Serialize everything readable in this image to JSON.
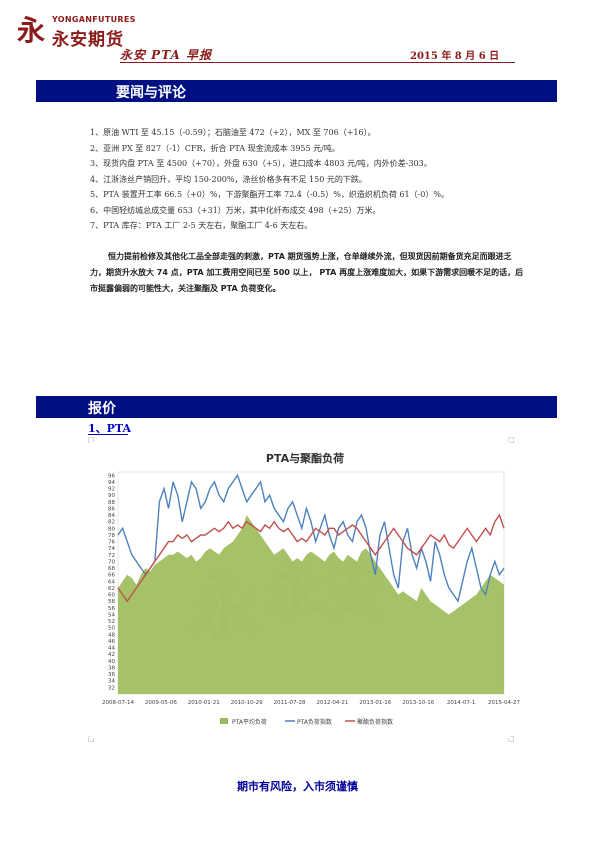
{
  "header": {
    "logo_en": "YONGANFUTURES",
    "logo_cn": "永安期货",
    "title": "永安 PTA 早报",
    "date": "2015 年 8 月 6 日"
  },
  "sections": {
    "news_title": "要闻与评论",
    "quote_title": "报价",
    "pta_subtitle": "1、PTA"
  },
  "news": [
    "1、原油 WTI 至 45.15（-0.59）；石脑油至 472（+2），MX 至 706（+16）。",
    "2、亚洲 PX 至 827（-1）CFR，折合 PTA 现金流成本 3955 元/吨。",
    "3、现货内盘 PTA 至 4500（+70），外盘 630（+5），进口成本 4803 元/吨，内外价差-303。",
    "4、江浙涤丝产销回升，平均 150-200%，涤丝价格多有不足 150 元的下跌。",
    "5、PTA 装置开工率 66.5（+0）%，下游聚酯开工率 72.4（-0.5）%，织造织机负荷 61（-0）%。",
    "6、中国轻纺城总成交量 653（+31）万米，其中化纤布成交 498（+25）万米。",
    "7、PTA 库存：PTA 工厂 2-5 天左右，聚酯工厂 4-6 天左右。"
  ],
  "commentary": "恒力提前检修及其他化工品全部走强的刺激，PTA 期货强势上涨，仓单继续外流，但现货因前期备货充足而跟进乏力，期货升水放大 74 点，PTA 加工费用空间已至 500 以上， PTA 再度上涨难度加大，如果下游需求回暖不足的话，后市挺露偏弱的可能性大，关注聚酯及 PTA 负荷变化。",
  "footer": "期市有风险，入市须谨慎",
  "colors": {
    "brand": "#8b1a1a",
    "bar": "#000f82",
    "link": "#0000cc",
    "footer": "#000099",
    "green": "#9bbb59",
    "blue": "#4f81bd",
    "red": "#c0504d"
  },
  "chart_data": {
    "type": "line",
    "title": "PTA与聚酯负荷",
    "ylim": [
      30,
      97
    ],
    "yticks": [
      32,
      34,
      36,
      38,
      40,
      42,
      44,
      46,
      48,
      50,
      52,
      54,
      56,
      58,
      60,
      62,
      64,
      66,
      68,
      70,
      72,
      74,
      76,
      78,
      80,
      82,
      84,
      86,
      88,
      90,
      92,
      94,
      96
    ],
    "x_ticks": [
      "2008-07-14",
      "2009-05-06",
      "2010-01-21",
      "2010-10-29",
      "2011-07-28",
      "2012-04-21",
      "2013-01-16",
      "2013-10-16",
      "2014-07-1",
      "2015-04-27"
    ],
    "series": [
      {
        "name": "PTA平均负荷",
        "style": "area",
        "color": "#9bbb59",
        "values": [
          62,
          64,
          66,
          65,
          63,
          66,
          68,
          67,
          69,
          70,
          71,
          72,
          72,
          73,
          72,
          71,
          72,
          70,
          71,
          73,
          74,
          73,
          72,
          74,
          75,
          76,
          78,
          80,
          84,
          82,
          80,
          78,
          76,
          74,
          72,
          73,
          74,
          72,
          70,
          71,
          70,
          72,
          73,
          72,
          71,
          70,
          72,
          73,
          71,
          70,
          72,
          71,
          70,
          73,
          74,
          72,
          70,
          68,
          66,
          64,
          62,
          60,
          61,
          60,
          59,
          58,
          62,
          60,
          58,
          57,
          56,
          55,
          54,
          55,
          56,
          57,
          58,
          59,
          60,
          62,
          64,
          66,
          65,
          64,
          63
        ]
      },
      {
        "name": "PTA负荷指数",
        "style": "line",
        "color": "#4f81bd",
        "values": [
          78,
          80,
          76,
          72,
          70,
          68,
          66,
          68,
          70,
          88,
          92,
          86,
          94,
          90,
          82,
          88,
          94,
          92,
          86,
          88,
          92,
          94,
          90,
          88,
          92,
          94,
          96,
          92,
          88,
          90,
          92,
          94,
          88,
          90,
          86,
          84,
          82,
          86,
          88,
          84,
          80,
          86,
          82,
          76,
          80,
          84,
          78,
          74,
          80,
          82,
          78,
          76,
          82,
          84,
          80,
          72,
          66,
          78,
          82,
          74,
          66,
          62,
          76,
          80,
          72,
          68,
          74,
          70,
          64,
          76,
          72,
          66,
          62,
          60,
          58,
          64,
          70,
          74,
          68,
          62,
          60,
          66,
          70,
          66,
          68
        ]
      },
      {
        "name": "聚酯负荷指数",
        "style": "line",
        "color": "#c0504d",
        "values": [
          62,
          60,
          58,
          60,
          62,
          64,
          66,
          68,
          70,
          72,
          74,
          76,
          76,
          78,
          77,
          78,
          76,
          77,
          78,
          78,
          79,
          80,
          79,
          80,
          82,
          80,
          81,
          80,
          82,
          81,
          80,
          79,
          81,
          80,
          82,
          80,
          79,
          80,
          78,
          76,
          77,
          76,
          78,
          80,
          79,
          78,
          80,
          80,
          78,
          79,
          80,
          81,
          80,
          78,
          76,
          74,
          72,
          74,
          76,
          78,
          80,
          78,
          76,
          74,
          73,
          72,
          74,
          76,
          78,
          77,
          76,
          78,
          75,
          74,
          76,
          78,
          80,
          78,
          76,
          78,
          80,
          78,
          82,
          84,
          80
        ]
      }
    ],
    "legend": "bottom"
  }
}
